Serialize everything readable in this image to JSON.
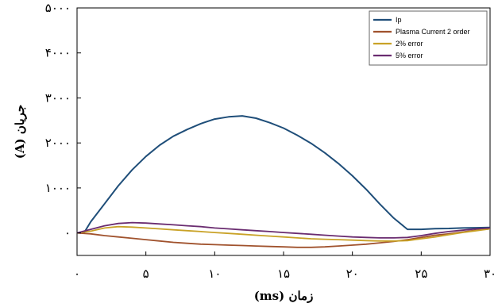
{
  "chart_data": {
    "type": "line",
    "xlabel": "زمان (ms)",
    "ylabel": "جریان (A)",
    "xlim": [
      0,
      30
    ],
    "ylim": [
      -500,
      5000
    ],
    "x_ticks": [
      0,
      5,
      10,
      15,
      20,
      25,
      30
    ],
    "x_tick_labels": [
      "۰",
      "۵",
      "۱۰",
      "۱۵",
      "۲۰",
      "۲۵",
      "۳۰"
    ],
    "y_ticks": [
      0,
      1000,
      2000,
      3000,
      4000,
      5000
    ],
    "y_tick_labels": [
      "۰",
      "۱۰۰۰",
      "۲۰۰۰",
      "۳۰۰۰",
      "۴۰۰۰",
      "۵۰۰۰"
    ],
    "grid": false,
    "legend_position": "top-right",
    "series": [
      {
        "name": "Ip",
        "color": "#1f4e79",
        "x": [
          0,
          0.5,
          1,
          2,
          3,
          4,
          5,
          6,
          7,
          8,
          9,
          10,
          11,
          12,
          13,
          14,
          15,
          16,
          17,
          18,
          19,
          20,
          21,
          22,
          23,
          24,
          25,
          26,
          27,
          28,
          29,
          30
        ],
        "y": [
          0,
          0,
          250,
          650,
          1050,
          1400,
          1700,
          1950,
          2150,
          2300,
          2430,
          2530,
          2580,
          2600,
          2550,
          2450,
          2330,
          2170,
          1990,
          1780,
          1540,
          1270,
          970,
          640,
          330,
          80,
          80,
          95,
          100,
          110,
          115,
          120
        ]
      },
      {
        "name": "Plasma Current 2 order",
        "color": "#a0522d",
        "x": [
          0,
          1,
          2,
          3,
          4,
          5,
          6,
          7,
          8,
          9,
          10,
          11,
          12,
          13,
          14,
          15,
          16,
          17,
          18,
          19,
          20,
          21,
          22,
          23,
          24,
          25,
          26,
          27,
          28,
          29,
          30
        ],
        "y": [
          0,
          -20,
          -60,
          -90,
          -120,
          -150,
          -180,
          -210,
          -230,
          -250,
          -260,
          -270,
          -280,
          -290,
          -300,
          -310,
          -320,
          -320,
          -310,
          -290,
          -270,
          -250,
          -220,
          -190,
          -150,
          -100,
          -50,
          -20,
          20,
          60,
          90
        ]
      },
      {
        "name": "2% error",
        "color": "#c9a227",
        "x": [
          0,
          1,
          2,
          3,
          4,
          5,
          6,
          7,
          8,
          9,
          10,
          11,
          12,
          13,
          14,
          15,
          16,
          17,
          18,
          19,
          20,
          21,
          22,
          23,
          24,
          25,
          26,
          27,
          28,
          29,
          30
        ],
        "y": [
          0,
          40,
          110,
          140,
          130,
          110,
          90,
          70,
          50,
          30,
          10,
          -10,
          -30,
          -50,
          -70,
          -90,
          -110,
          -130,
          -140,
          -150,
          -160,
          -170,
          -180,
          -180,
          -170,
          -130,
          -90,
          -40,
          10,
          50,
          90
        ]
      },
      {
        "name": "5% error",
        "color": "#6a2c70",
        "x": [
          0,
          1,
          2,
          3,
          4,
          5,
          6,
          7,
          8,
          9,
          10,
          11,
          12,
          13,
          14,
          15,
          16,
          17,
          18,
          19,
          20,
          21,
          22,
          23,
          24,
          25,
          26,
          27,
          28,
          29,
          30
        ],
        "y": [
          0,
          80,
          160,
          210,
          230,
          220,
          200,
          180,
          160,
          140,
          110,
          90,
          70,
          50,
          30,
          10,
          -10,
          -30,
          -50,
          -70,
          -90,
          -100,
          -110,
          -110,
          -100,
          -60,
          -10,
          30,
          60,
          90,
          110
        ]
      }
    ]
  }
}
